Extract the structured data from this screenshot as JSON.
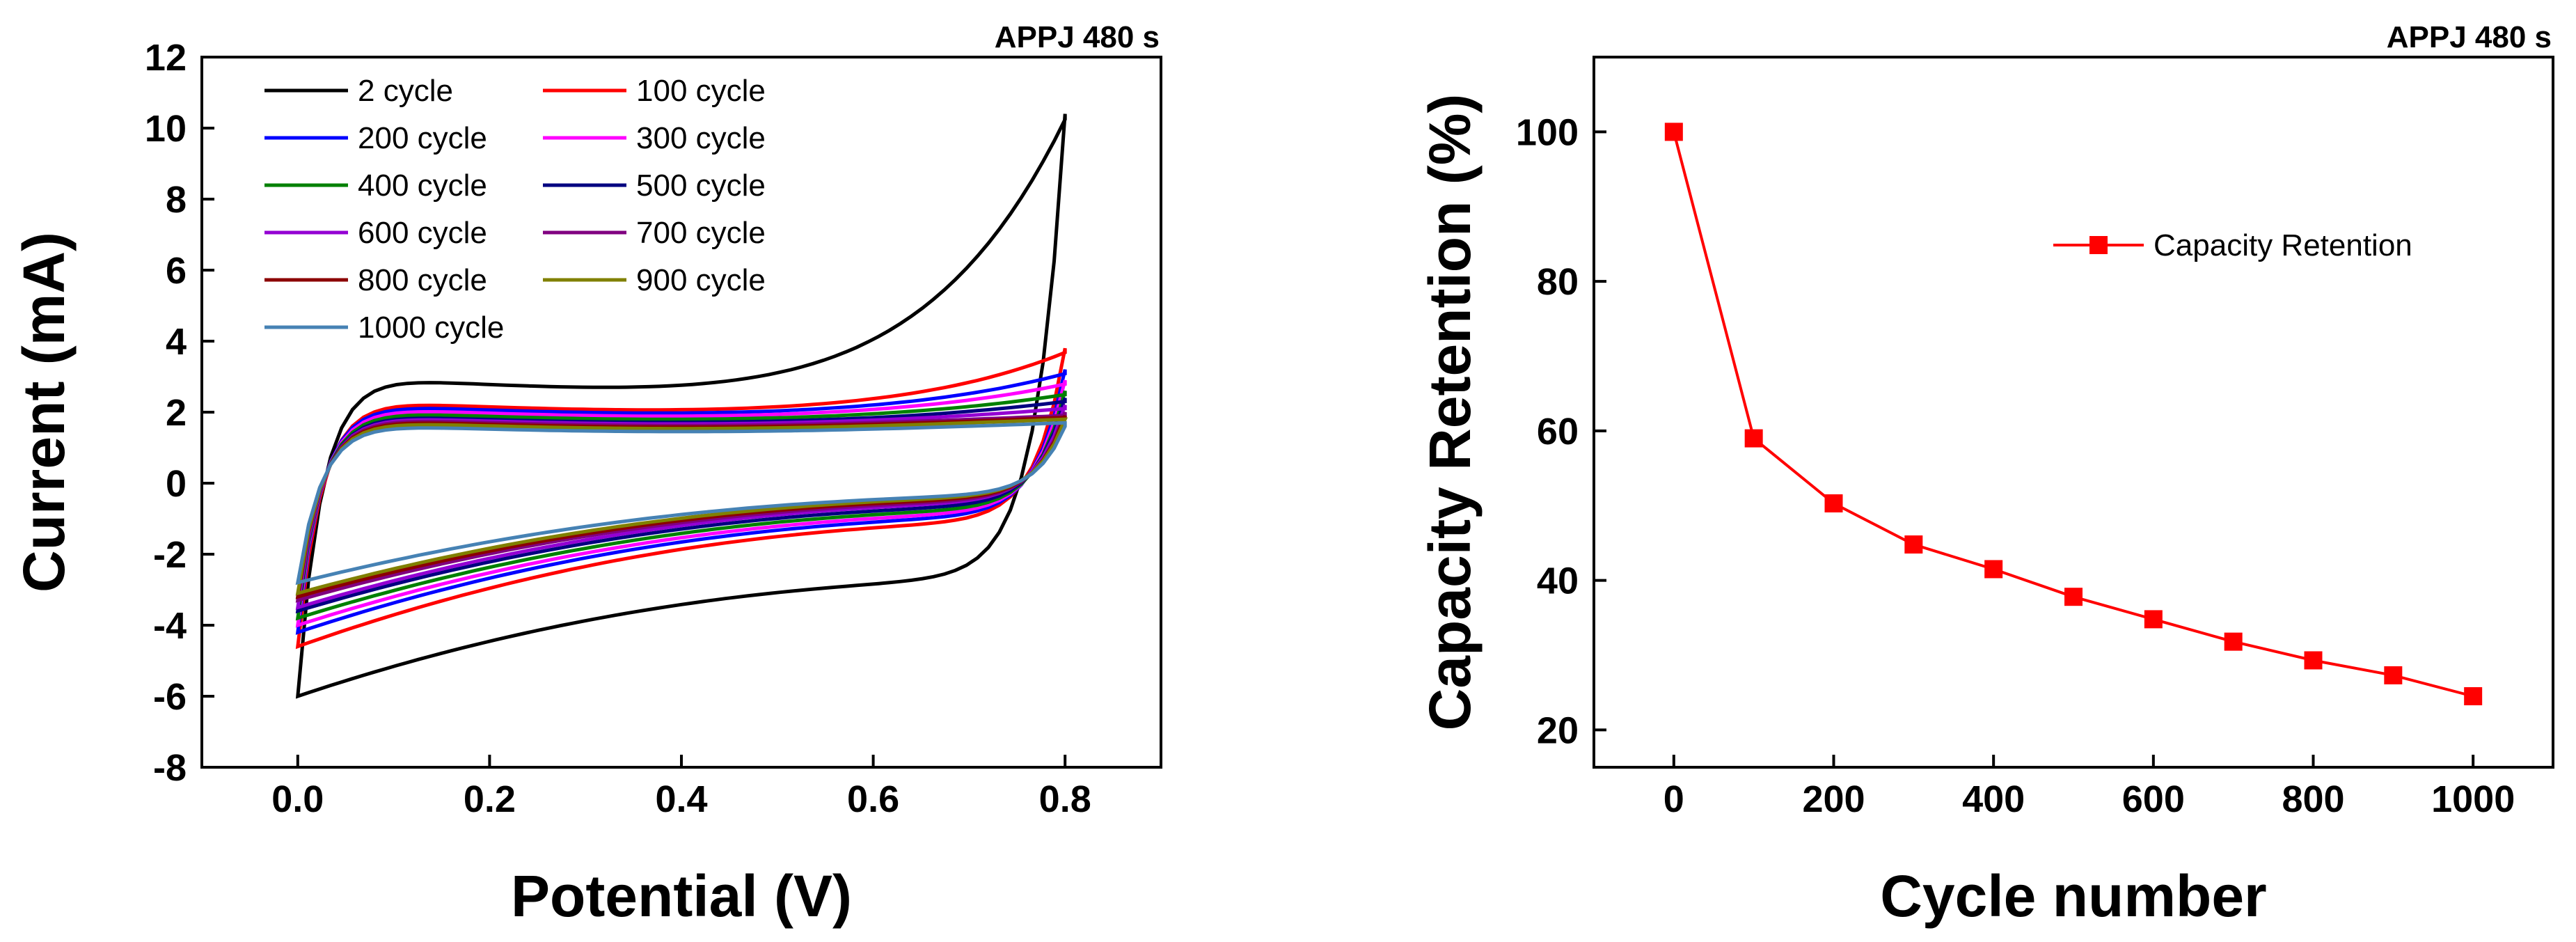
{
  "chart_data": [
    {
      "type": "line",
      "corner_label": "APPJ 480 s",
      "xlabel": "Potential (V)",
      "ylabel": "Current (mA)",
      "xlim": [
        -0.1,
        0.9
      ],
      "ylim": [
        -8,
        12
      ],
      "xticks": [
        0.0,
        0.2,
        0.4,
        0.6,
        0.8
      ],
      "xtick_labels": [
        "0.0",
        "0.2",
        "0.4",
        "0.6",
        "0.8"
      ],
      "yticks": [
        -8,
        -6,
        -4,
        -2,
        0,
        2,
        4,
        6,
        8,
        10,
        12
      ],
      "ytick_labels": [
        "-8",
        "-6",
        "-4",
        "-2",
        "0",
        "2",
        "4",
        "6",
        "8",
        "10",
        "12"
      ],
      "legend_position": "top-left",
      "series": [
        {
          "name": "2 cycle",
          "color": "#000000",
          "i_max": 10.4,
          "i_min": -6.0,
          "plateau_up": 3.1,
          "plateau_down": -2.7
        },
        {
          "name": "100 cycle",
          "color": "#ff0000",
          "i_max": 3.8,
          "i_min": -4.6,
          "plateau_up": 2.4,
          "plateau_down": -1.1
        },
        {
          "name": "200 cycle",
          "color": "#0000ff",
          "i_max": 3.2,
          "i_min": -4.2,
          "plateau_up": 2.3,
          "plateau_down": -0.95
        },
        {
          "name": "300 cycle",
          "color": "#ff00ff",
          "i_max": 2.9,
          "i_min": -4.0,
          "plateau_up": 2.2,
          "plateau_down": -0.85
        },
        {
          "name": "400 cycle",
          "color": "#008000",
          "i_max": 2.6,
          "i_min": -3.8,
          "plateau_up": 2.1,
          "plateau_down": -0.75
        },
        {
          "name": "500 cycle",
          "color": "#000080",
          "i_max": 2.4,
          "i_min": -3.6,
          "plateau_up": 2.0,
          "plateau_down": -0.65
        },
        {
          "name": "600 cycle",
          "color": "#9400d3",
          "i_max": 2.2,
          "i_min": -3.5,
          "plateau_up": 1.95,
          "plateau_down": -0.55
        },
        {
          "name": "700 cycle",
          "color": "#800080",
          "i_max": 2.0,
          "i_min": -3.3,
          "plateau_up": 1.9,
          "plateau_down": -0.5
        },
        {
          "name": "800 cycle",
          "color": "#8b0000",
          "i_max": 1.9,
          "i_min": -3.2,
          "plateau_up": 1.85,
          "plateau_down": -0.45
        },
        {
          "name": "900 cycle",
          "color": "#808000",
          "i_max": 1.8,
          "i_min": -3.1,
          "plateau_up": 1.8,
          "plateau_down": -0.4
        },
        {
          "name": "1000 cycle",
          "color": "#4682b4",
          "i_max": 1.6,
          "i_min": -2.8,
          "plateau_up": 1.7,
          "plateau_down": -0.35
        }
      ]
    },
    {
      "type": "line",
      "corner_label": "APPJ 480 s",
      "xlabel": "Cycle number",
      "ylabel": "Capacity Retention (%)",
      "xlim": [
        -100,
        1100
      ],
      "ylim": [
        15,
        110
      ],
      "xticks": [
        0,
        200,
        400,
        600,
        800,
        1000
      ],
      "xtick_labels": [
        "0",
        "200",
        "400",
        "600",
        "800",
        "1000"
      ],
      "yticks": [
        20,
        40,
        60,
        80,
        100
      ],
      "ytick_labels": [
        "20",
        "40",
        "60",
        "80",
        "100"
      ],
      "legend_position": "top-right",
      "series": [
        {
          "name": "Capacity Retention",
          "color": "#ff0000",
          "marker": "square",
          "x": [
            0,
            100,
            200,
            300,
            400,
            500,
            600,
            700,
            800,
            900,
            1000
          ],
          "y": [
            100,
            59,
            50.3,
            44.8,
            41.5,
            37.8,
            34.8,
            31.8,
            29.3,
            27.3,
            24.5
          ]
        }
      ]
    }
  ]
}
